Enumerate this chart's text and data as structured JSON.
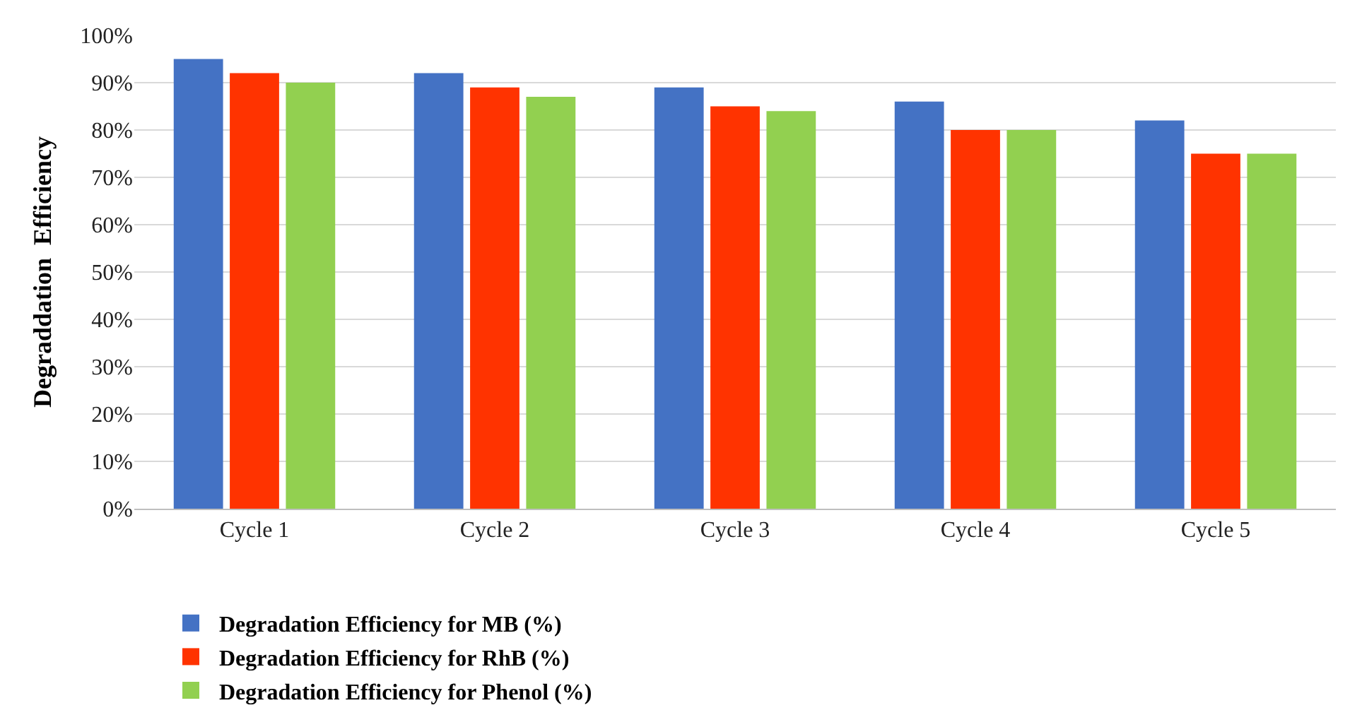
{
  "chart_data": {
    "type": "bar",
    "ylabel": "Degraddation  Efficiency",
    "categories": [
      "Cycle 1",
      "Cycle 2",
      "Cycle 3",
      "Cycle 4",
      "Cycle 5"
    ],
    "series": [
      {
        "name": "Degradation Efficiency for MB (%)",
        "color": "#4472c4",
        "values": [
          95,
          92,
          89,
          86,
          82
        ]
      },
      {
        "name": "Degradation Efficiency for RhB (%)",
        "color": "#ff3300",
        "values": [
          92,
          89,
          85,
          80,
          75
        ]
      },
      {
        "name": "Degradation Efficiency for Phenol (%)",
        "color": "#92d050",
        "values": [
          90,
          87,
          84,
          80,
          75
        ]
      }
    ],
    "ylim": [
      0,
      100
    ],
    "yticks": [
      {
        "value": 0,
        "label": "0%"
      },
      {
        "value": 10,
        "label": "10%"
      },
      {
        "value": 20,
        "label": "20%"
      },
      {
        "value": 30,
        "label": "30%"
      },
      {
        "value": 40,
        "label": "40%"
      },
      {
        "value": 50,
        "label": "50%"
      },
      {
        "value": 60,
        "label": "60%"
      },
      {
        "value": 70,
        "label": "70%"
      },
      {
        "value": 80,
        "label": "80%"
      },
      {
        "value": 90,
        "label": "90%"
      },
      {
        "value": 100,
        "label": "100%"
      }
    ],
    "grid": "y",
    "legend": "bottom"
  }
}
